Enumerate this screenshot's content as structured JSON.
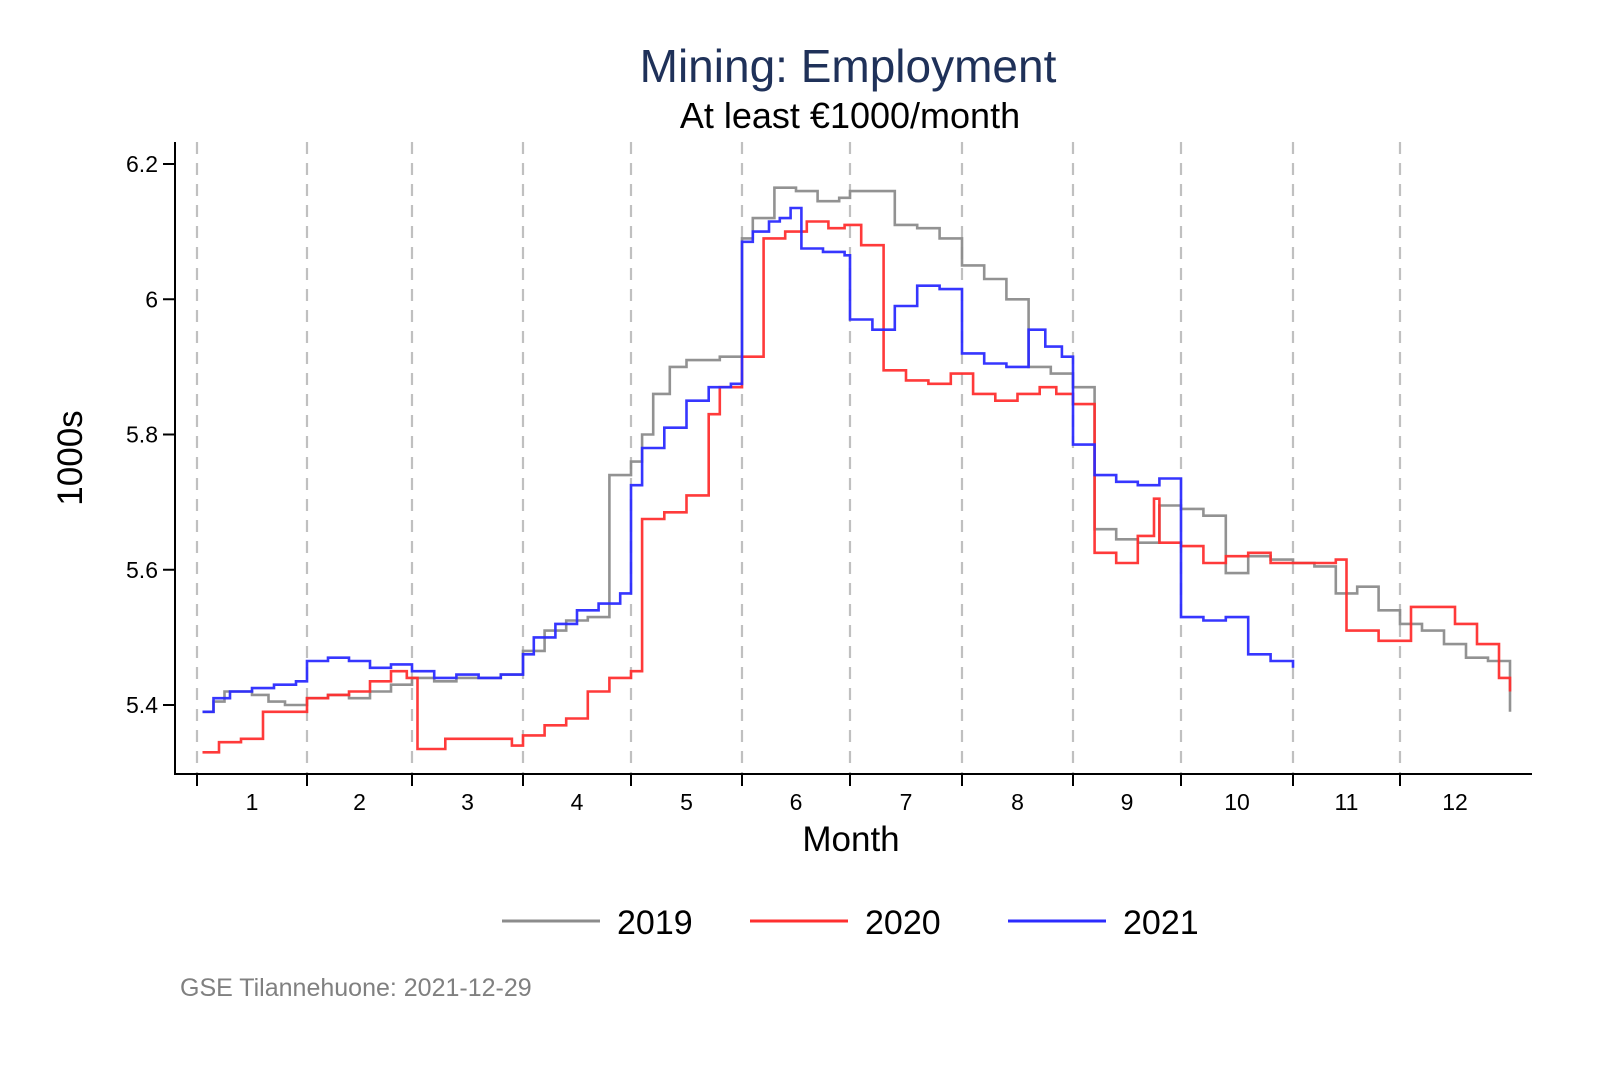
{
  "chart_data": {
    "type": "line",
    "title": "Mining: Employment",
    "subtitle": "At least €1000/month",
    "xlabel": "Month",
    "ylabel": "1000s",
    "note": "GSE Tilannehuone: 2021-12-29",
    "xlim": [
      0,
      12
    ],
    "ylim": [
      5.3,
      6.23
    ],
    "yticks": [
      5.4,
      5.6,
      5.8,
      6,
      6.2
    ],
    "ytick_labels": [
      "5.4",
      "5.6",
      "5.8",
      "6",
      "6.2"
    ],
    "xtick_labels": [
      "1",
      "2",
      "3",
      "4",
      "5",
      "6",
      "7",
      "8",
      "9",
      "10",
      "11",
      "12"
    ],
    "month_separators": "dashed vertical lines at month boundaries",
    "grid": false,
    "legend_position": "bottom",
    "step": true,
    "series": [
      {
        "name": "2019",
        "color": "#8c8c8c",
        "x": [
          0.05,
          0.15,
          0.25,
          0.35,
          0.5,
          0.65,
          0.8,
          1.0,
          1.2,
          1.4,
          1.6,
          1.8,
          2.0,
          2.2,
          2.4,
          2.6,
          2.8,
          3.0,
          3.2,
          3.4,
          3.6,
          3.8,
          4.0,
          4.1,
          4.2,
          4.35,
          4.5,
          4.65,
          4.8,
          5.0,
          5.1,
          5.3,
          5.5,
          5.7,
          5.9,
          6.0,
          6.2,
          6.4,
          6.6,
          6.8,
          7.0,
          7.2,
          7.4,
          7.6,
          7.8,
          8.0,
          8.2,
          8.4,
          8.6,
          8.8,
          9.0,
          9.2,
          9.4,
          9.6,
          9.8,
          10.0,
          10.2,
          10.4,
          10.6,
          10.8,
          11.0,
          11.2,
          11.4,
          11.6,
          11.8,
          12.0
        ],
        "values": [
          5.39,
          5.405,
          5.42,
          5.42,
          5.415,
          5.405,
          5.4,
          5.41,
          5.415,
          5.41,
          5.42,
          5.43,
          5.44,
          5.435,
          5.44,
          5.44,
          5.445,
          5.48,
          5.51,
          5.525,
          5.53,
          5.74,
          5.76,
          5.8,
          5.86,
          5.9,
          5.91,
          5.91,
          5.915,
          6.09,
          6.12,
          6.165,
          6.16,
          6.145,
          6.15,
          6.16,
          6.16,
          6.11,
          6.105,
          6.09,
          6.05,
          6.03,
          6.0,
          5.9,
          5.89,
          5.87,
          5.66,
          5.645,
          5.64,
          5.695,
          5.69,
          5.68,
          5.595,
          5.62,
          5.615,
          5.61,
          5.605,
          5.565,
          5.575,
          5.54,
          5.52,
          5.51,
          5.49,
          5.47,
          5.465,
          5.39
        ]
      },
      {
        "name": "2020",
        "color": "#ff2f2f",
        "x": [
          0.05,
          0.2,
          0.4,
          0.6,
          0.8,
          1.0,
          1.2,
          1.4,
          1.6,
          1.8,
          1.95,
          2.05,
          2.3,
          2.6,
          2.9,
          3.0,
          3.2,
          3.4,
          3.6,
          3.8,
          4.0,
          4.1,
          4.3,
          4.5,
          4.7,
          4.8,
          5.0,
          5.2,
          5.4,
          5.6,
          5.8,
          5.95,
          6.1,
          6.3,
          6.5,
          6.7,
          6.9,
          7.1,
          7.3,
          7.5,
          7.7,
          7.85,
          8.0,
          8.2,
          8.4,
          8.6,
          8.75,
          8.8,
          9.0,
          9.2,
          9.4,
          9.6,
          9.8,
          10.0,
          10.2,
          10.4,
          10.5,
          10.8,
          11.0,
          11.1,
          11.3,
          11.5,
          11.7,
          11.9,
          12.0
        ],
        "values": [
          5.33,
          5.345,
          5.35,
          5.39,
          5.39,
          5.41,
          5.415,
          5.42,
          5.435,
          5.45,
          5.44,
          5.335,
          5.35,
          5.35,
          5.34,
          5.355,
          5.37,
          5.38,
          5.42,
          5.44,
          5.45,
          5.675,
          5.685,
          5.71,
          5.83,
          5.87,
          5.915,
          6.09,
          6.1,
          6.115,
          6.105,
          6.11,
          6.08,
          5.895,
          5.88,
          5.875,
          5.89,
          5.86,
          5.85,
          5.86,
          5.87,
          5.86,
          5.845,
          5.625,
          5.61,
          5.65,
          5.705,
          5.64,
          5.635,
          5.61,
          5.62,
          5.625,
          5.61,
          5.61,
          5.61,
          5.615,
          5.51,
          5.495,
          5.495,
          5.545,
          5.545,
          5.52,
          5.49,
          5.44,
          5.42
        ]
      },
      {
        "name": "2021",
        "color": "#2b2bff",
        "x": [
          0.05,
          0.15,
          0.3,
          0.5,
          0.7,
          0.9,
          1.0,
          1.2,
          1.4,
          1.6,
          1.8,
          2.0,
          2.2,
          2.4,
          2.6,
          2.8,
          3.0,
          3.1,
          3.3,
          3.5,
          3.7,
          3.9,
          4.0,
          4.1,
          4.3,
          4.5,
          4.7,
          4.9,
          5.0,
          5.1,
          5.25,
          5.35,
          5.45,
          5.55,
          5.75,
          5.95,
          6.0,
          6.2,
          6.4,
          6.6,
          6.8,
          7.0,
          7.2,
          7.4,
          7.6,
          7.75,
          7.9,
          8.0,
          8.2,
          8.4,
          8.6,
          8.8,
          9.0,
          9.2,
          9.4,
          9.6,
          9.8,
          10.0
        ],
        "values": [
          5.39,
          5.41,
          5.42,
          5.425,
          5.43,
          5.435,
          5.465,
          5.47,
          5.465,
          5.455,
          5.46,
          5.45,
          5.44,
          5.445,
          5.44,
          5.445,
          5.475,
          5.5,
          5.52,
          5.54,
          5.55,
          5.565,
          5.725,
          5.78,
          5.81,
          5.85,
          5.87,
          5.875,
          6.085,
          6.1,
          6.115,
          6.12,
          6.135,
          6.075,
          6.07,
          6.065,
          5.97,
          5.955,
          5.99,
          6.02,
          6.015,
          5.92,
          5.905,
          5.9,
          5.955,
          5.93,
          5.915,
          5.785,
          5.74,
          5.73,
          5.725,
          5.735,
          5.53,
          5.525,
          5.53,
          5.475,
          5.465,
          5.455
        ]
      }
    ]
  }
}
